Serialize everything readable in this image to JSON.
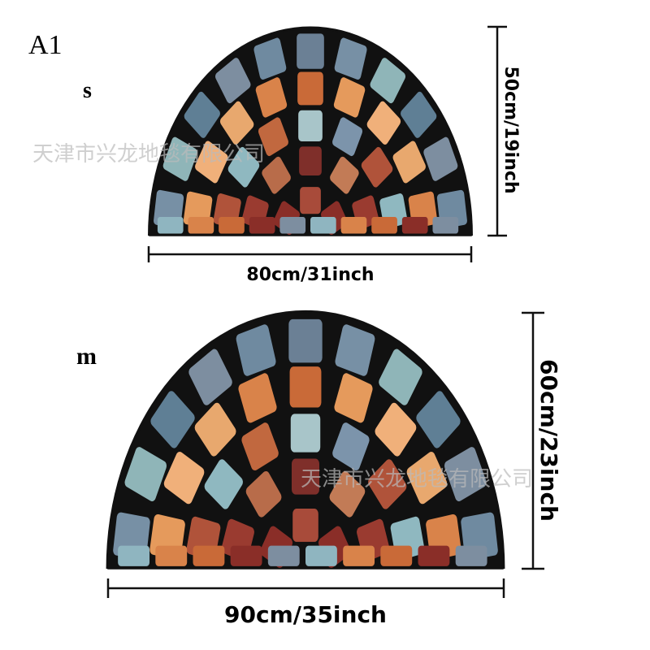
{
  "label": "A1",
  "small": {
    "size": "s",
    "width": "80cm/31inch",
    "height": "50cm/19inch",
    "watermark": "天津市兴龙地毯有限公司"
  },
  "medium": {
    "size": "m",
    "width": "90cm/35inch",
    "height": "60cm/23inch",
    "watermark": "天津市兴龙地毯有限公司"
  }
}
